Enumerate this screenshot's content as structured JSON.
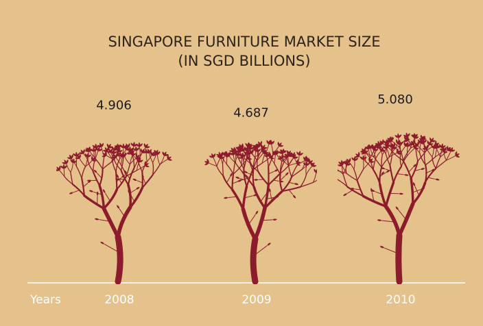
{
  "chart_data": {
    "type": "pictogram",
    "title": "SINGAPORE FURNITURE MARKET SIZE",
    "subtitle": "(IN SGD BILLIONS)",
    "x_label": "Years",
    "categories": [
      "2008",
      "2009",
      "2010"
    ],
    "values": [
      4.906,
      4.687,
      5.08
    ],
    "value_labels": [
      "4.906",
      "4.687",
      "5.080"
    ],
    "color": "#8c1c2c"
  }
}
